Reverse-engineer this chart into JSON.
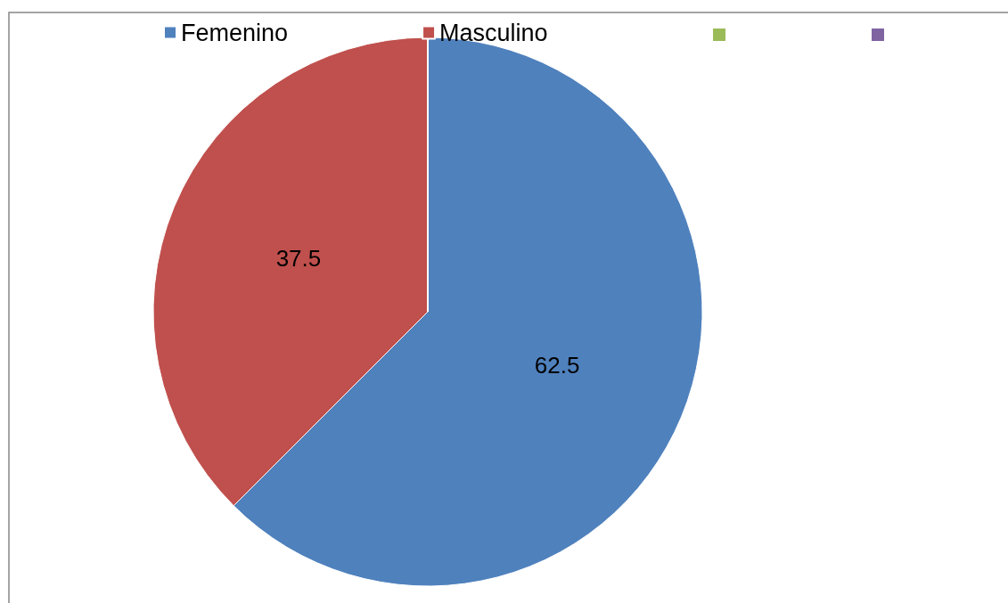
{
  "chart_data": {
    "type": "pie",
    "categories": [
      "Femenino",
      "Masculino",
      null,
      null
    ],
    "values": [
      62.5,
      37.5,
      0,
      0
    ],
    "colors": [
      "#4f81bd",
      "#c0504d",
      "#9bbb59",
      "#8064a2"
    ],
    "data_labels": true,
    "legend": "top"
  }
}
